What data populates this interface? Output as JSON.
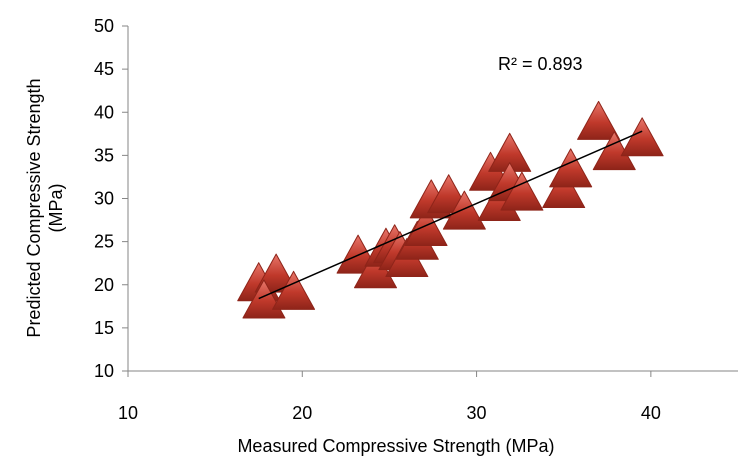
{
  "chart_data": {
    "type": "scatter",
    "title": "",
    "xlabel": "Measured Compressive Strength (MPa)",
    "ylabel_lines": [
      "Predicted Compressive Strength",
      "(MPa)"
    ],
    "xlim": [
      10,
      45
    ],
    "ylim": [
      10,
      50
    ],
    "xticks": [
      10,
      20,
      30,
      40
    ],
    "yticks": [
      10,
      15,
      20,
      25,
      30,
      35,
      40,
      45,
      50
    ],
    "grid": false,
    "legend": "none",
    "marker": "triangle",
    "marker_color": "#c0392b",
    "trendline": {
      "x": [
        17.5,
        39.5
      ],
      "y": [
        18.4,
        37.8
      ],
      "color": "#000000"
    },
    "annotation": "R² = 0.893",
    "points": [
      {
        "x": 17.5,
        "y": 20.0
      },
      {
        "x": 18.5,
        "y": 21.0
      },
      {
        "x": 17.8,
        "y": 18.0
      },
      {
        "x": 19.5,
        "y": 19.0
      },
      {
        "x": 23.2,
        "y": 23.2
      },
      {
        "x": 24.2,
        "y": 21.5
      },
      {
        "x": 24.8,
        "y": 24.0
      },
      {
        "x": 25.3,
        "y": 24.4
      },
      {
        "x": 25.6,
        "y": 23.6
      },
      {
        "x": 26.0,
        "y": 22.8
      },
      {
        "x": 26.6,
        "y": 24.8
      },
      {
        "x": 27.1,
        "y": 26.4
      },
      {
        "x": 27.4,
        "y": 29.6
      },
      {
        "x": 28.4,
        "y": 30.2
      },
      {
        "x": 29.3,
        "y": 28.3
      },
      {
        "x": 30.8,
        "y": 32.8
      },
      {
        "x": 31.3,
        "y": 29.3
      },
      {
        "x": 31.9,
        "y": 35.0
      },
      {
        "x": 31.9,
        "y": 31.6
      },
      {
        "x": 32.6,
        "y": 30.5
      },
      {
        "x": 35.0,
        "y": 30.8
      },
      {
        "x": 35.4,
        "y": 33.2
      },
      {
        "x": 37.0,
        "y": 38.7
      },
      {
        "x": 37.9,
        "y": 35.2
      },
      {
        "x": 39.5,
        "y": 36.8
      }
    ]
  }
}
